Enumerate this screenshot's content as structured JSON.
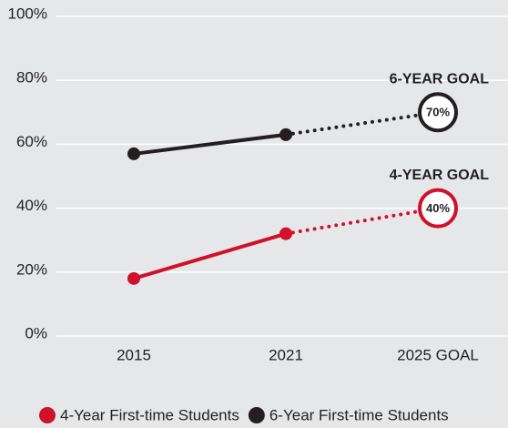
{
  "chart_data": {
    "type": "line",
    "categories": [
      "2015",
      "2021",
      "2025 GOAL"
    ],
    "series": [
      {
        "name": "4-Year First-time Students",
        "color": "#d0112b",
        "values": [
          18,
          32,
          40
        ],
        "value_labels": [
          null,
          null,
          "40%"
        ],
        "goal_label": "4-YEAR GOAL"
      },
      {
        "name": "6-Year First-time Students",
        "color": "#231f20",
        "values": [
          57,
          63,
          70
        ],
        "value_labels": [
          null,
          null,
          "70%"
        ],
        "goal_label": "6-YEAR GOAL"
      }
    ],
    "projection_start_index": 1,
    "ylim": [
      0,
      100
    ],
    "yticks": [
      {
        "value": 0,
        "label": "0%"
      },
      {
        "value": 20,
        "label": "20%"
      },
      {
        "value": 40,
        "label": "40%"
      },
      {
        "value": 60,
        "label": "60%"
      },
      {
        "value": 80,
        "label": "80%"
      },
      {
        "value": 100,
        "label": "100%"
      }
    ],
    "grid": true
  }
}
